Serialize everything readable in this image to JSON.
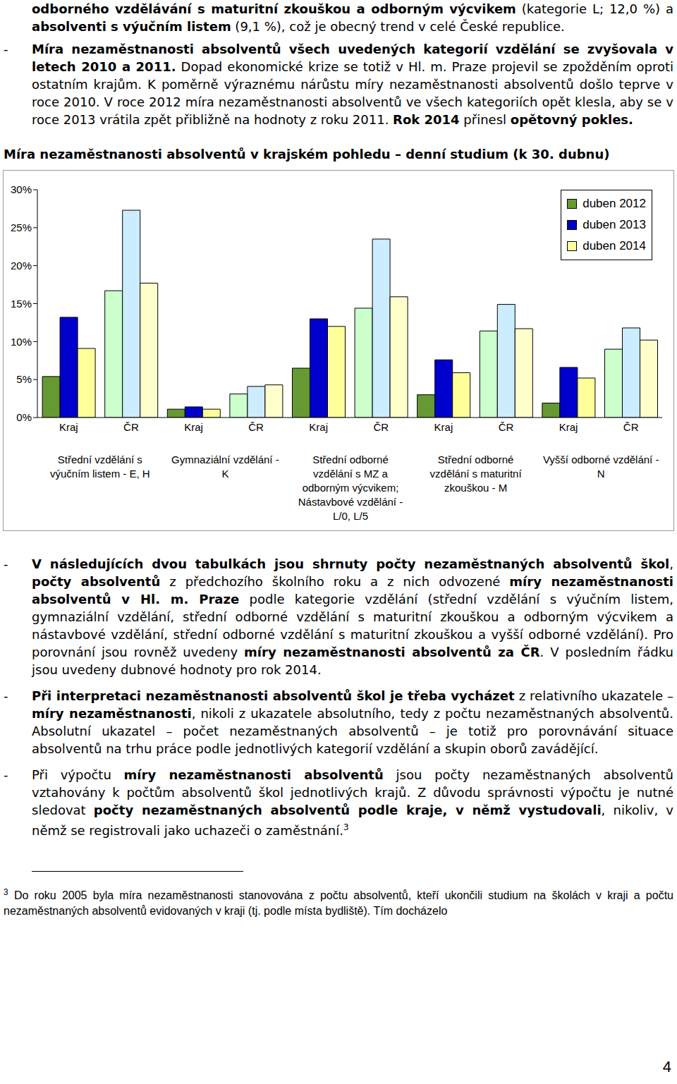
{
  "bullet": "-",
  "paragraph_top": [
    {
      "text": "odborného vzdělávání s maturitní zkouškou a odborným výcvikem",
      "bold": true
    },
    {
      "text": " (kategorie L; 12,0 %) a "
    },
    {
      "text": "absolventi s výučním listem",
      "bold": true
    },
    {
      "text": " (9,1 %), což je obecný trend v celé České republice."
    }
  ],
  "bullet_1": [
    {
      "text": "Míra nezaměstnanosti absolventů všech uvedených kategorií vzdělání se zvyšovala v letech 2010 a 2011.",
      "bold": true
    },
    {
      "text": " Dopad ekonomické krize se totiž v Hl. m. Praze projevil se zpožděním oproti ostatním krajům. K poměrně výraznému nárůstu míry nezaměstnanosti absolventů došlo teprve v roce 2010. V roce 2012 míra nezaměstnanosti absolventů ve všech kategoriích opět klesla, aby se v roce 2013 vrátila zpět přibližně na hodnoty z roku 2011. "
    },
    {
      "text": "Rok 2014",
      "bold": true
    },
    {
      "text": " přinesl "
    },
    {
      "text": "opětovný pokles.",
      "bold": true
    }
  ],
  "chart_heading": "Míra nezaměstnanosti absolventů v krajském pohledu – denní studium (k 30. dubnu)",
  "chart_data": {
    "type": "bar",
    "categories": [
      "Kraj",
      "ČR",
      "Kraj",
      "ČR",
      "Kraj",
      "ČR",
      "Kraj",
      "ČR",
      "Kraj",
      "ČR"
    ],
    "groups": [
      "Střední vzdělání s výučním listem - E, H",
      "Gymnaziální vzdělání - K",
      "Střední odborné vzdělání s MZ a odborným výcvikem; Nástavbové vzdělání - L/0, L/5",
      "Střední odborné vzdělání s maturitní zkouškou - M",
      "Vyšší odborné vzdělání - N"
    ],
    "series": [
      {
        "name": "duben 2012",
        "color": "#669933",
        "colors": [
          "#669933",
          "#CCFFCC",
          "#669933",
          "#CCFFCC",
          "#669933",
          "#CCFFCC",
          "#669933",
          "#CCFFCC",
          "#669933",
          "#CCFFCC"
        ],
        "values": [
          5.4,
          16.7,
          1.1,
          3.1,
          6.5,
          14.4,
          3.0,
          11.4,
          1.9,
          9.0
        ]
      },
      {
        "name": "duben 2013",
        "color": "#0000CC",
        "colors": [
          "#0000CC",
          "#CCECFF",
          "#0000CC",
          "#CCECFF",
          "#0000CC",
          "#CCECFF",
          "#0000CC",
          "#CCECFF",
          "#0000CC",
          "#CCECFF"
        ],
        "values": [
          13.2,
          27.3,
          1.4,
          4.1,
          13.0,
          23.5,
          7.6,
          14.9,
          6.6,
          11.8
        ]
      },
      {
        "name": "duben 2014",
        "color": "#FFFF99",
        "colors": [
          "#FFFF99",
          "#FFFFCC",
          "#FFFF99",
          "#FFFFCC",
          "#FFFF99",
          "#FFFFCC",
          "#FFFF99",
          "#FFFFCC",
          "#FFFF99",
          "#FFFFCC"
        ],
        "values": [
          9.1,
          17.7,
          1.1,
          4.3,
          12.0,
          15.9,
          5.9,
          11.7,
          5.2,
          10.2
        ]
      }
    ],
    "ylim": [
      0,
      30
    ],
    "yticks": [
      {
        "value": 0,
        "label": "0%"
      },
      {
        "value": 5,
        "label": "5%"
      },
      {
        "value": 10,
        "label": "10%"
      },
      {
        "value": 15,
        "label": "15%"
      },
      {
        "value": 20,
        "label": "20%"
      },
      {
        "value": 25,
        "label": "25%"
      },
      {
        "value": 30,
        "label": "30%"
      }
    ],
    "grid": false,
    "legend": "top-right"
  },
  "bullets_after": [
    [
      {
        "text": "V následujících dvou tabulkách jsou shrnuty počty nezaměstnaných absolventů škol",
        "bold": true
      },
      {
        "text": ", "
      },
      {
        "text": "počty absolventů",
        "bold": true
      },
      {
        "text": " z předchozího školního roku a z nich odvozené "
      },
      {
        "text": "míry nezaměstnanosti absolventů v Hl. m. Praze",
        "bold": true
      },
      {
        "text": " podle kategorie vzdělání (střední vzdělání s výučním listem, gymnaziální vzdělání, střední odborné vzdělání s maturitní zkouškou a odborným výcvikem a nástavbové vzdělání, střední odborné vzdělání s maturitní zkouškou a vyšší odborné vzdělání). Pro porovnání jsou rovněž uvedeny "
      },
      {
        "text": "míry nezaměstnanosti absolventů za ČR",
        "bold": true
      },
      {
        "text": ". V posledním řádku jsou uvedeny dubnové hodnoty pro rok 2014."
      }
    ],
    [
      {
        "text": "Při interpretaci nezaměstnanosti absolventů škol je třeba vycházet",
        "bold": true
      },
      {
        "text": " z relativního ukazatele – "
      },
      {
        "text": "míry nezaměstnanosti",
        "bold": true
      },
      {
        "text": ", nikoli z ukazatele absolutního, tedy z počtu nezaměstnaných absolventů. Absolutní ukazatel – počet nezaměstnaných absolventů – je totiž pro porovnávání situace absolventů na trhu práce podle jednotlivých kategorií vzdělání a skupin oborů zavádějící."
      }
    ],
    [
      {
        "text": "Při výpočtu "
      },
      {
        "text": "míry nezaměstnanosti absolventů",
        "bold": true
      },
      {
        "text": " jsou počty nezaměstnaných absolventů vztahovány k počtům absolventů škol jednotlivých krajů. Z důvodu správnosti výpočtu je nutné sledovat "
      },
      {
        "text": "počty nezaměstnaných absolventů podle kraje, v němž vystudovali",
        "bold": true
      },
      {
        "text": ", nikoliv, v němž se registrovali jako uchazeči o zaměstnání."
      },
      {
        "sup": "3"
      }
    ]
  ],
  "footnote": {
    "mark": "3",
    "text": " Do roku 2005 byla míra nezaměstnanosti stanovována z počtu absolventů, kteří ukončili studium na školách v kraji a počtu nezaměstnaných absolventů evidovaných v kraji (tj. podle místa bydliště). Tím docházelo"
  },
  "page_number": "4"
}
